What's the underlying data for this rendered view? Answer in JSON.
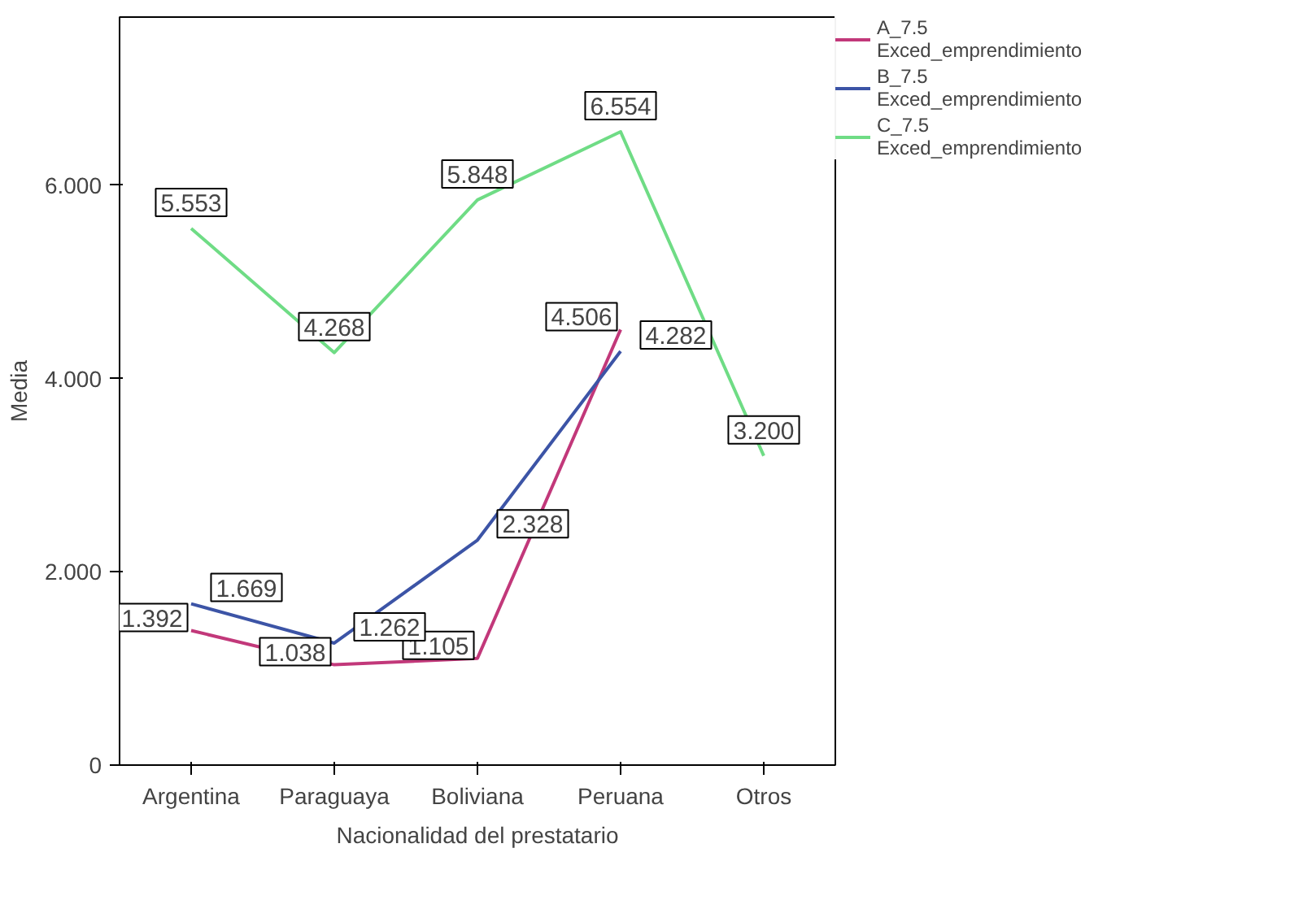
{
  "chart_data": {
    "type": "line",
    "xlabel": "Nacionalidad del prestatario",
    "ylabel": "Media",
    "categories": [
      "Argentina",
      "Paraguaya",
      "Boliviana",
      "Peruana",
      "Otros"
    ],
    "series": [
      {
        "name": "A_7.5 Exced_emprendimiento",
        "color": "#c2387a",
        "values": [
          1.392,
          1.038,
          1.105,
          4.506,
          null
        ],
        "value_labels": [
          "1.392",
          "1.038",
          "1.105",
          "4.506",
          null
        ]
      },
      {
        "name": "B_7.5 Exced_emprendimiento",
        "color": "#3c54a6",
        "values": [
          1.669,
          1.262,
          2.328,
          4.282,
          null
        ],
        "value_labels": [
          "1.669",
          "1.262",
          "2.328",
          "4.282",
          null
        ]
      },
      {
        "name": "C_7.5 Exced_emprendimiento",
        "color": "#6fdc85",
        "values": [
          5.553,
          4.268,
          5.848,
          6.554,
          3.2
        ],
        "value_labels": [
          "5.553",
          "4.268",
          "5.848",
          "6.554",
          "3.200"
        ]
      }
    ],
    "ylim": [
      0,
      7.74
    ],
    "yticks": [
      {
        "value": 0,
        "label": "0"
      },
      {
        "value": 2,
        "label": "2.000"
      },
      {
        "value": 4,
        "label": "4.000"
      },
      {
        "value": 6,
        "label": "6.000"
      }
    ],
    "grid": false,
    "legend": "top right",
    "line_style": "solid"
  }
}
